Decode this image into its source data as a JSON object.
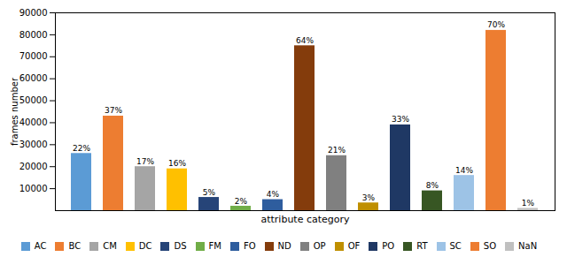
{
  "chart_data": {
    "type": "bar",
    "categories": [
      "AC",
      "BC",
      "CM",
      "DC",
      "DS",
      "FM",
      "FO",
      "ND",
      "OP",
      "OF",
      "PO",
      "RT",
      "SC",
      "SO",
      "NaN"
    ],
    "values": [
      26000,
      43000,
      20000,
      19000,
      6000,
      2000,
      5000,
      75000,
      25000,
      3500,
      39000,
      9000,
      16000,
      82000,
      1000
    ],
    "annotations": [
      "22%",
      "37%",
      "17%",
      "16%",
      "5%",
      "2%",
      "4%",
      "64%",
      "21%",
      "3%",
      "33%",
      "8%",
      "14%",
      "70%",
      "1%"
    ],
    "colors": [
      "#5b9bd5",
      "#ed7d31",
      "#a5a5a5",
      "#ffc000",
      "#264478",
      "#70ad47",
      "#2e5d9e",
      "#843c0c",
      "#808080",
      "#bf8f00",
      "#1f3864",
      "#375623",
      "#9dc3e6",
      "#ed7d31",
      "#c0c0c0"
    ],
    "xlabel": "attribute category",
    "ylabel": "frames number",
    "ylim": [
      0,
      90000
    ],
    "yticks": [
      10000,
      20000,
      30000,
      40000,
      50000,
      60000,
      70000,
      80000,
      90000
    ],
    "grid": false,
    "legend": "bottom",
    "tick_labels": "y"
  }
}
